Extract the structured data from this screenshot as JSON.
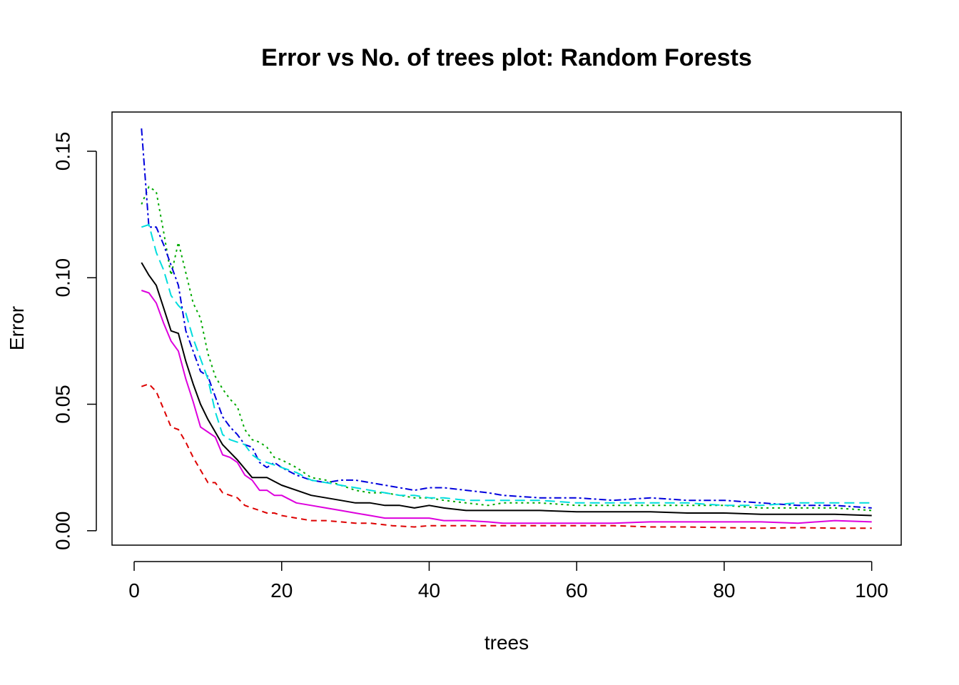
{
  "chart_data": {
    "type": "line",
    "title": "Error vs No. of trees plot: Random Forests",
    "xlabel": "trees",
    "ylabel": "Error",
    "xlim": [
      -3,
      104
    ],
    "ylim": [
      -0.0057,
      0.1655
    ],
    "xticks": [
      0,
      20,
      40,
      60,
      80,
      100
    ],
    "xtick_labels": [
      "0",
      "20",
      "40",
      "60",
      "80",
      "100"
    ],
    "yticks": [
      0.0,
      0.05,
      0.1,
      0.15
    ],
    "ytick_labels": [
      "0.00",
      "0.05",
      "0.10",
      "0.15"
    ],
    "grid": false,
    "legend": "none",
    "series": [
      {
        "color": "#000000",
        "dash": "",
        "x": [
          1,
          2,
          3,
          4,
          5,
          6,
          7,
          8,
          9,
          10,
          12,
          14,
          16,
          18,
          20,
          22,
          24,
          26,
          28,
          30,
          32,
          34,
          36,
          38,
          40,
          42,
          45,
          50,
          55,
          60,
          65,
          70,
          75,
          80,
          85,
          90,
          95,
          100
        ],
        "y": [
          0.106,
          0.101,
          0.097,
          0.088,
          0.079,
          0.078,
          0.067,
          0.058,
          0.05,
          0.044,
          0.034,
          0.028,
          0.021,
          0.021,
          0.018,
          0.016,
          0.014,
          0.013,
          0.012,
          0.011,
          0.011,
          0.01,
          0.01,
          0.009,
          0.01,
          0.009,
          0.008,
          0.008,
          0.008,
          0.0075,
          0.0075,
          0.0075,
          0.007,
          0.007,
          0.0065,
          0.0065,
          0.0065,
          0.006
        ]
      },
      {
        "color": "#dd0000",
        "dash": "8,6",
        "x": [
          1,
          2,
          3,
          4,
          5,
          6,
          7,
          8,
          9,
          10,
          11,
          12,
          13,
          14,
          15,
          16,
          17,
          18,
          19,
          20,
          22,
          24,
          26,
          28,
          30,
          32,
          35,
          38,
          40,
          42,
          45,
          50,
          55,
          60,
          65,
          70,
          75,
          80,
          85,
          90,
          95,
          100
        ],
        "y": [
          0.057,
          0.058,
          0.055,
          0.048,
          0.041,
          0.04,
          0.035,
          0.029,
          0.024,
          0.019,
          0.019,
          0.015,
          0.014,
          0.013,
          0.01,
          0.009,
          0.008,
          0.007,
          0.007,
          0.006,
          0.005,
          0.004,
          0.004,
          0.0035,
          0.003,
          0.003,
          0.002,
          0.0015,
          0.002,
          0.002,
          0.002,
          0.002,
          0.002,
          0.002,
          0.002,
          0.0015,
          0.0015,
          0.0012,
          0.001,
          0.0012,
          0.001,
          0.001
        ]
      },
      {
        "color": "#00aa00",
        "dash": "3,5",
        "x": [
          1,
          2,
          3,
          4,
          5,
          6,
          7,
          8,
          9,
          10,
          11,
          12,
          13,
          14,
          15,
          16,
          17,
          18,
          19,
          20,
          22,
          24,
          26,
          28,
          30,
          32,
          34,
          36,
          38,
          40,
          42,
          45,
          48,
          50,
          55,
          60,
          65,
          70,
          75,
          80,
          85,
          90,
          95,
          100
        ],
        "y": [
          0.129,
          0.136,
          0.134,
          0.118,
          0.101,
          0.114,
          0.102,
          0.09,
          0.084,
          0.07,
          0.061,
          0.056,
          0.052,
          0.049,
          0.04,
          0.036,
          0.035,
          0.033,
          0.029,
          0.028,
          0.025,
          0.021,
          0.02,
          0.018,
          0.016,
          0.015,
          0.015,
          0.014,
          0.013,
          0.013,
          0.012,
          0.011,
          0.01,
          0.011,
          0.011,
          0.01,
          0.01,
          0.01,
          0.01,
          0.01,
          0.009,
          0.009,
          0.009,
          0.008
        ]
      },
      {
        "color": "#0000dd",
        "dash": "10,4,3,4",
        "x": [
          1,
          2,
          3,
          4,
          5,
          6,
          7,
          8,
          9,
          10,
          11,
          12,
          13,
          14,
          15,
          16,
          17,
          18,
          19,
          20,
          22,
          24,
          26,
          28,
          30,
          32,
          34,
          36,
          38,
          40,
          42,
          45,
          48,
          50,
          55,
          60,
          65,
          70,
          75,
          80,
          85,
          90,
          95,
          100
        ],
        "y": [
          0.159,
          0.12,
          0.12,
          0.113,
          0.105,
          0.097,
          0.079,
          0.071,
          0.063,
          0.061,
          0.053,
          0.045,
          0.041,
          0.038,
          0.034,
          0.033,
          0.027,
          0.025,
          0.027,
          0.025,
          0.022,
          0.02,
          0.019,
          0.02,
          0.02,
          0.019,
          0.018,
          0.017,
          0.016,
          0.017,
          0.017,
          0.016,
          0.015,
          0.014,
          0.013,
          0.013,
          0.012,
          0.013,
          0.012,
          0.012,
          0.011,
          0.01,
          0.01,
          0.009
        ]
      },
      {
        "color": "#dd00dd",
        "dash": "",
        "x": [
          1,
          2,
          3,
          4,
          5,
          6,
          7,
          8,
          9,
          10,
          11,
          12,
          13,
          14,
          15,
          16,
          17,
          18,
          19,
          20,
          22,
          24,
          26,
          28,
          30,
          32,
          34,
          36,
          38,
          40,
          42,
          45,
          48,
          50,
          55,
          60,
          65,
          70,
          75,
          80,
          85,
          90,
          95,
          100
        ],
        "y": [
          0.095,
          0.094,
          0.09,
          0.082,
          0.075,
          0.071,
          0.06,
          0.051,
          0.041,
          0.039,
          0.037,
          0.03,
          0.029,
          0.027,
          0.022,
          0.02,
          0.016,
          0.016,
          0.014,
          0.014,
          0.011,
          0.01,
          0.009,
          0.008,
          0.007,
          0.006,
          0.005,
          0.005,
          0.005,
          0.005,
          0.004,
          0.004,
          0.0035,
          0.003,
          0.003,
          0.003,
          0.003,
          0.0035,
          0.0035,
          0.0035,
          0.0035,
          0.003,
          0.004,
          0.0035
        ]
      },
      {
        "color": "#00dddd",
        "dash": "14,7",
        "x": [
          1,
          2,
          3,
          4,
          5,
          6,
          7,
          8,
          9,
          10,
          11,
          12,
          13,
          14,
          15,
          16,
          17,
          18,
          19,
          20,
          22,
          24,
          26,
          28,
          30,
          32,
          34,
          36,
          38,
          40,
          42,
          45,
          48,
          50,
          55,
          60,
          65,
          70,
          75,
          80,
          85,
          90,
          95,
          100
        ],
        "y": [
          0.12,
          0.121,
          0.11,
          0.103,
          0.093,
          0.089,
          0.086,
          0.076,
          0.068,
          0.06,
          0.047,
          0.038,
          0.036,
          0.035,
          0.034,
          0.03,
          0.028,
          0.027,
          0.026,
          0.025,
          0.023,
          0.02,
          0.019,
          0.018,
          0.017,
          0.016,
          0.015,
          0.014,
          0.014,
          0.013,
          0.013,
          0.012,
          0.012,
          0.012,
          0.012,
          0.011,
          0.011,
          0.011,
          0.011,
          0.01,
          0.01,
          0.011,
          0.011,
          0.011
        ]
      }
    ]
  }
}
